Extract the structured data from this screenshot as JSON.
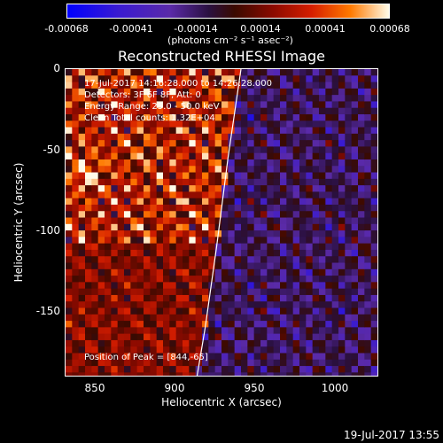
{
  "colorbar": {
    "ticks": [
      "-0.00068",
      "-0.00041",
      "-0.00014",
      "0.00014",
      "0.00041",
      "0.00068"
    ],
    "unit": "(photons cm⁻² s⁻¹ asec⁻²)"
  },
  "chart_data": {
    "type": "heatmap",
    "title": "Reconstructed RHESSI Image",
    "xlabel": "Heliocentric X (arcsec)",
    "ylabel": "Heliocentric Y (arcsec)",
    "xlim": [
      832,
      1024
    ],
    "ylim": [
      -190,
      0
    ],
    "xticks": [
      "850",
      "900",
      "950",
      "1000"
    ],
    "yticks": [
      "0",
      "-50",
      "-100",
      "-150"
    ],
    "colorbar_range": [
      -0.00068,
      0.00068
    ],
    "colormap": [
      "#0000ff",
      "#3a1bd0",
      "#5a2aa8",
      "#2a1040",
      "#3a0a00",
      "#8b0a00",
      "#d61e00",
      "#ff7a00",
      "#fffbe8"
    ],
    "annotations": [
      "17-Jul-2017 14:16:28.000 to 14:26:28.000",
      "Detectors: 3F 6F 8F, Att: 0",
      "Energy Range: 25.0 - 50.0 keV",
      "Clean    Total counts: 1.32E+04"
    ],
    "peak_text": "Position of Peak = [844,-65]",
    "peak": [
      844,
      -65
    ],
    "limb_curve": [
      [
        940,
        0
      ],
      [
        932,
        -55
      ],
      [
        925,
        -110
      ],
      [
        918,
        -160
      ],
      [
        913,
        -190
      ]
    ]
  },
  "footer": {
    "date": "19-Jul-2017 13:55"
  }
}
